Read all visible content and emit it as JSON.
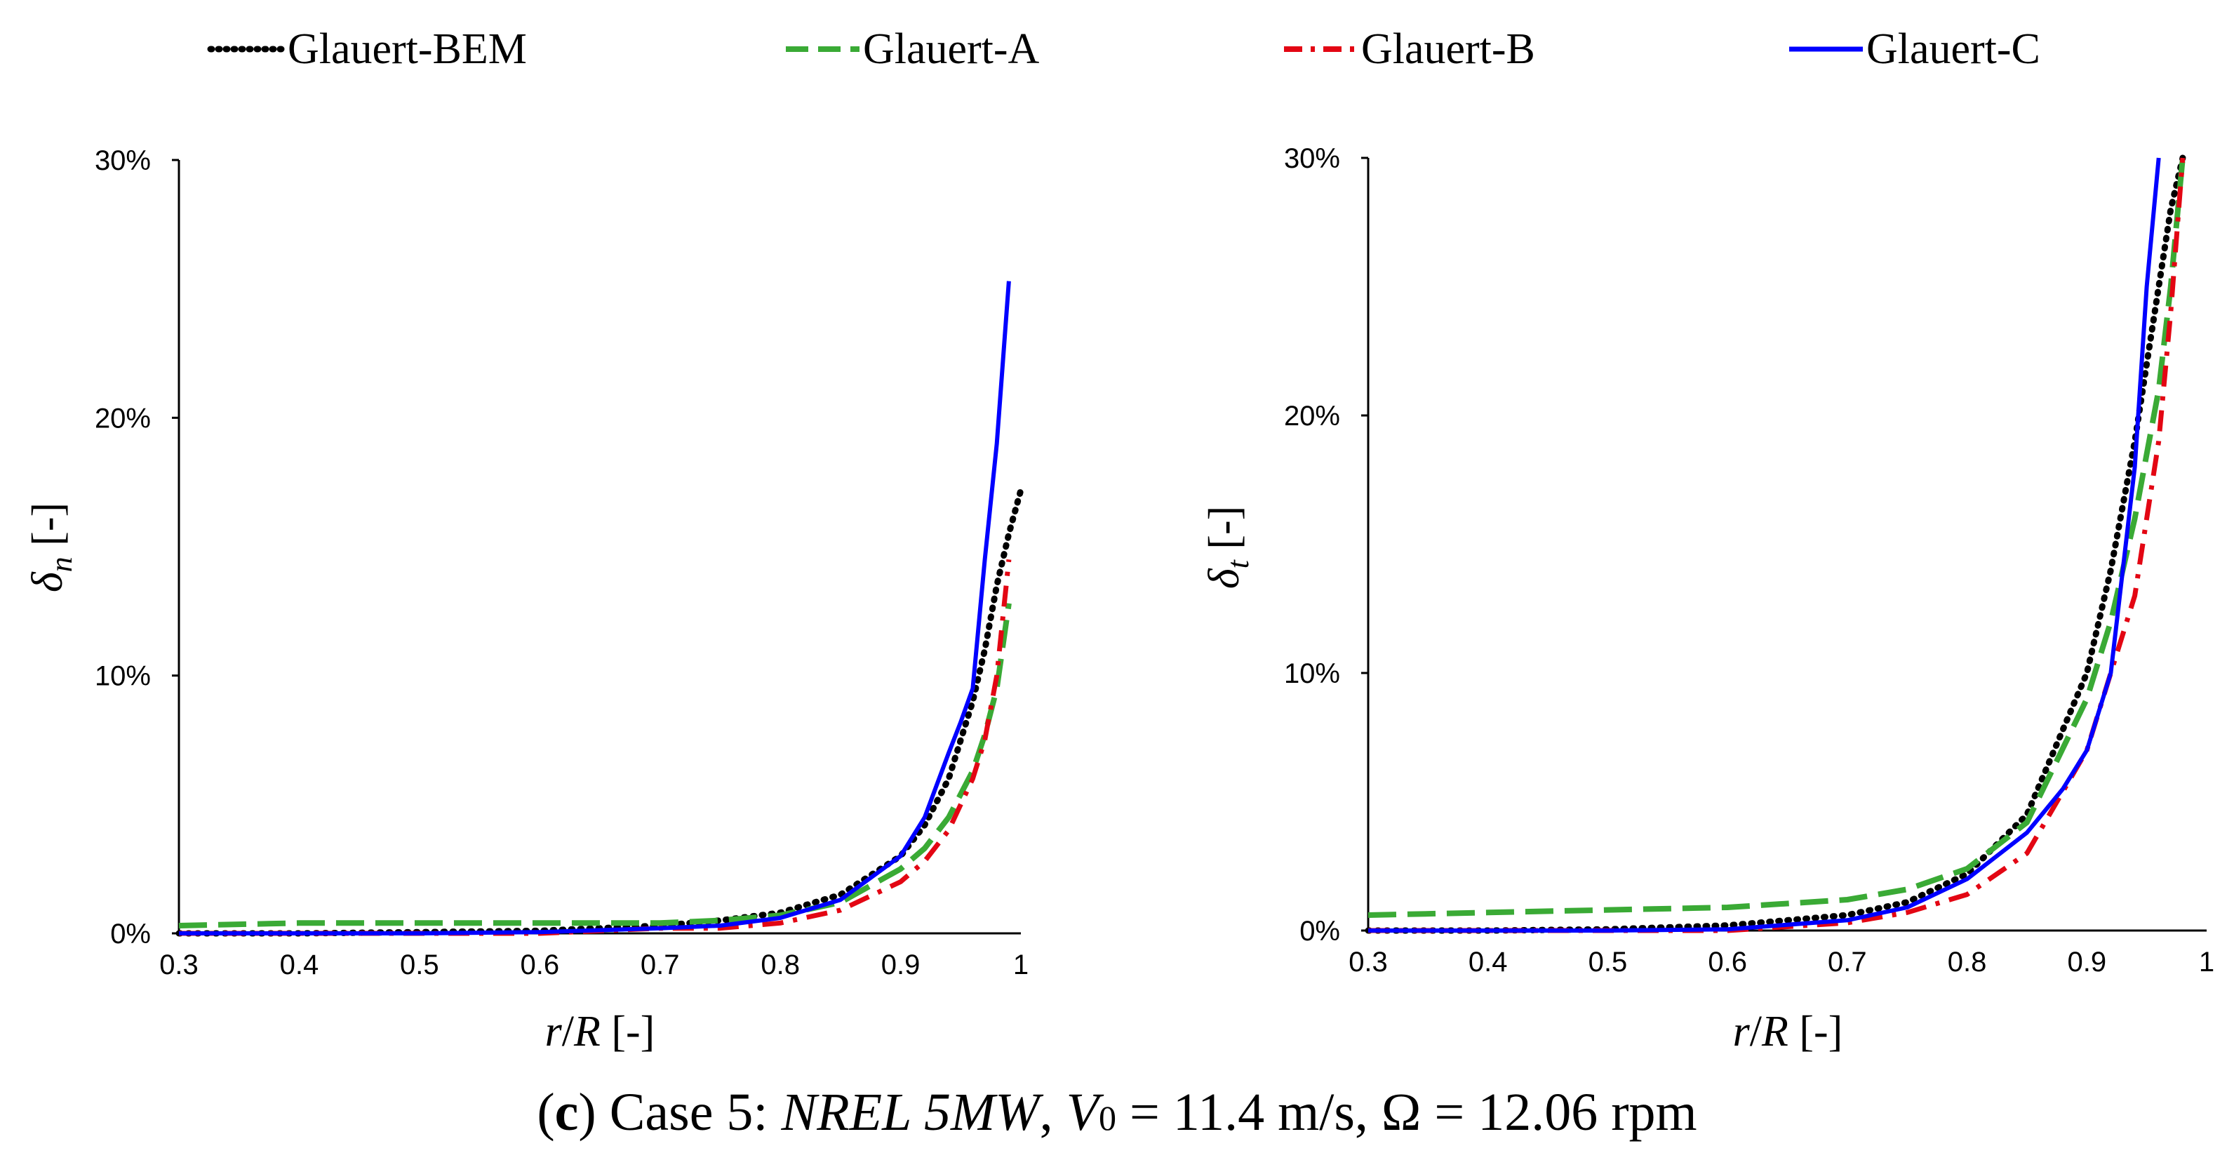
{
  "legend": [
    {
      "name": "Glauert-BEM",
      "color": "#000000",
      "style": "dotted"
    },
    {
      "name": "Glauert-A",
      "color": "#3aaa35",
      "style": "dashed"
    },
    {
      "name": "Glauert-B",
      "color": "#e30613",
      "style": "dashdot"
    },
    {
      "name": "Glauert-C",
      "color": "#0000ff",
      "style": "solid"
    }
  ],
  "caption": {
    "label": "c",
    "open": "(",
    "close": ")",
    "case": " Case 5: ",
    "turbine": "NREL 5MW",
    "sep1": ", ",
    "v_symbol": "V",
    "v_sub": "0",
    "v_value": " = 11.4 m/s, ",
    "omega": "Ω = 12.06 rpm"
  },
  "chart_data": [
    {
      "type": "line",
      "panel": "left",
      "ylabel_symbol": "δ",
      "ylabel_sub": "n",
      "ylabel_unit": " [-]",
      "xlabel_var1": "r",
      "xlabel_slash": "/",
      "xlabel_var2": "R",
      "xlabel_unit": " [-]",
      "xlim": [
        0.3,
        1.0
      ],
      "ylim": [
        0,
        0.3
      ],
      "x_ticks": [
        "0.3",
        "0.4",
        "0.5",
        "0.6",
        "0.7",
        "0.8",
        "0.9",
        "1"
      ],
      "y_ticks": [
        "0%",
        "10%",
        "20%",
        "30%"
      ],
      "series": [
        {
          "name": "Glauert-BEM",
          "x": [
            0.3,
            0.4,
            0.5,
            0.6,
            0.65,
            0.7,
            0.75,
            0.8,
            0.85,
            0.9,
            0.92,
            0.94,
            0.96,
            0.97,
            0.98,
            0.99,
            1.0
          ],
          "values": [
            0,
            0,
            0.0005,
            0.001,
            0.002,
            0.003,
            0.005,
            0.008,
            0.015,
            0.03,
            0.042,
            0.06,
            0.09,
            0.11,
            0.135,
            0.155,
            0.172
          ]
        },
        {
          "name": "Glauert-A",
          "x": [
            0.3,
            0.4,
            0.5,
            0.6,
            0.7,
            0.75,
            0.8,
            0.85,
            0.9,
            0.92,
            0.94,
            0.96,
            0.97,
            0.98,
            0.99
          ],
          "values": [
            0.003,
            0.004,
            0.004,
            0.004,
            0.004,
            0.005,
            0.007,
            0.012,
            0.025,
            0.033,
            0.045,
            0.063,
            0.077,
            0.095,
            0.128
          ]
        },
        {
          "name": "Glauert-B",
          "x": [
            0.3,
            0.4,
            0.5,
            0.6,
            0.7,
            0.75,
            0.8,
            0.85,
            0.9,
            0.92,
            0.94,
            0.96,
            0.97,
            0.98,
            0.99
          ],
          "values": [
            0,
            0,
            0,
            0,
            0.002,
            0.002,
            0.004,
            0.009,
            0.02,
            0.028,
            0.04,
            0.06,
            0.075,
            0.1,
            0.145
          ]
        },
        {
          "name": "Glauert-C",
          "x": [
            0.3,
            0.4,
            0.5,
            0.6,
            0.7,
            0.75,
            0.8,
            0.85,
            0.9,
            0.92,
            0.94,
            0.95,
            0.96,
            0.97,
            0.98,
            0.99
          ],
          "values": [
            0,
            0,
            0,
            0.0005,
            0.002,
            0.003,
            0.006,
            0.013,
            0.03,
            0.045,
            0.07,
            0.082,
            0.095,
            0.145,
            0.19,
            0.253
          ]
        }
      ]
    },
    {
      "type": "line",
      "panel": "right",
      "ylabel_symbol": "δ",
      "ylabel_sub": "t",
      "ylabel_unit": " [-]",
      "xlabel_var1": "r",
      "xlabel_slash": "/",
      "xlabel_var2": "R",
      "xlabel_unit": " [-]",
      "xlim": [
        0.3,
        1.0
      ],
      "ylim": [
        0,
        0.3
      ],
      "x_ticks": [
        "0.3",
        "0.4",
        "0.5",
        "0.6",
        "0.7",
        "0.8",
        "0.9",
        "1"
      ],
      "y_ticks": [
        "0%",
        "10%",
        "20%",
        "30%"
      ],
      "series": [
        {
          "name": "Glauert-BEM",
          "x": [
            0.3,
            0.4,
            0.5,
            0.6,
            0.7,
            0.75,
            0.8,
            0.85,
            0.9,
            0.92,
            0.94,
            0.95,
            0.96,
            0.97,
            0.98
          ],
          "values": [
            0,
            0,
            0.0005,
            0.002,
            0.006,
            0.011,
            0.022,
            0.045,
            0.1,
            0.14,
            0.19,
            0.22,
            0.25,
            0.28,
            0.3
          ]
        },
        {
          "name": "Glauert-A",
          "x": [
            0.3,
            0.4,
            0.5,
            0.6,
            0.7,
            0.75,
            0.8,
            0.85,
            0.9,
            0.92,
            0.94,
            0.95,
            0.96,
            0.97,
            0.98
          ],
          "values": [
            0.006,
            0.007,
            0.008,
            0.009,
            0.012,
            0.016,
            0.024,
            0.042,
            0.09,
            0.12,
            0.16,
            0.185,
            0.21,
            0.25,
            0.3
          ]
        },
        {
          "name": "Glauert-B",
          "x": [
            0.3,
            0.4,
            0.5,
            0.6,
            0.7,
            0.75,
            0.8,
            0.85,
            0.9,
            0.92,
            0.94,
            0.95,
            0.96,
            0.97,
            0.98
          ],
          "values": [
            0,
            0,
            0,
            0,
            0.003,
            0.007,
            0.014,
            0.03,
            0.07,
            0.1,
            0.13,
            0.16,
            0.19,
            0.24,
            0.3
          ]
        },
        {
          "name": "Glauert-C",
          "x": [
            0.3,
            0.4,
            0.5,
            0.6,
            0.7,
            0.75,
            0.8,
            0.85,
            0.88,
            0.9,
            0.92,
            0.93,
            0.94,
            0.95,
            0.96
          ],
          "values": [
            0,
            0,
            0,
            0.0005,
            0.004,
            0.009,
            0.02,
            0.038,
            0.055,
            0.07,
            0.1,
            0.14,
            0.18,
            0.25,
            0.3
          ]
        }
      ]
    }
  ]
}
